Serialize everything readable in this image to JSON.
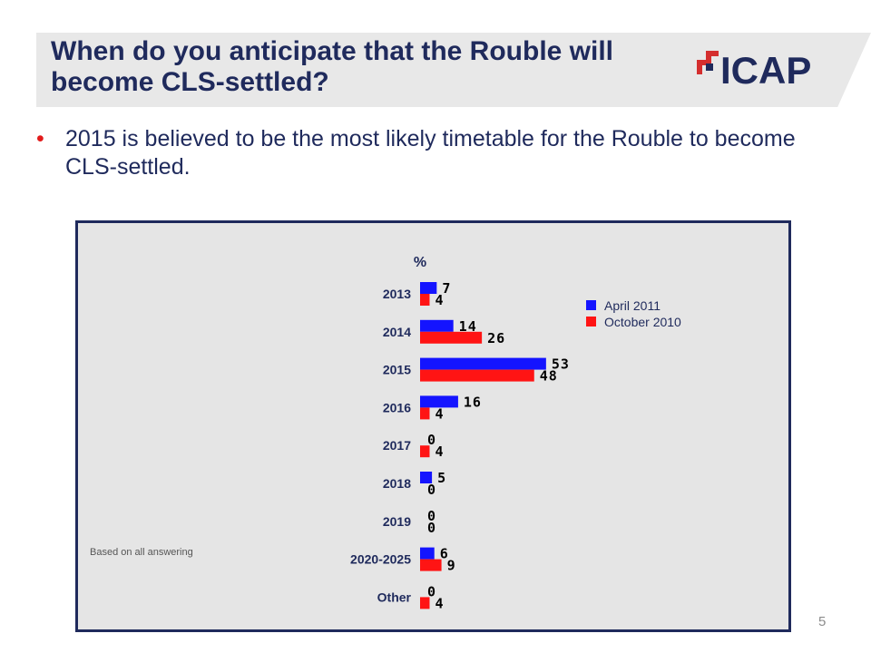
{
  "slide": {
    "title": "When do you anticipate that the Rouble will become CLS-settled?",
    "bullet": "2015 is believed to be the most likely timetable for the Rouble to become CLS-settled.",
    "logo_text": "ICAP",
    "footnote": "Based on all answering",
    "page_number": "5"
  },
  "colors": {
    "title": "#1f2a5c",
    "bullet_dot": "#e21b1b",
    "panel_bg": "#e5e5e5",
    "april_2011": "#1414ff",
    "october_2010": "#ff1414",
    "logo_red": "#d42e2e"
  },
  "chart_data": {
    "type": "bar",
    "orientation": "horizontal",
    "ylabel": "%",
    "categories": [
      "2013",
      "2014",
      "2015",
      "2016",
      "2017",
      "2018",
      "2019",
      "2020-2025",
      "Other"
    ],
    "series": [
      {
        "name": "April 2011",
        "values": [
          7,
          14,
          53,
          16,
          0,
          5,
          0,
          6,
          0
        ]
      },
      {
        "name": "October 2010",
        "values": [
          4,
          26,
          48,
          4,
          4,
          0,
          0,
          9,
          4
        ]
      }
    ],
    "legend_position": "top-right",
    "data_labels": true,
    "grid": false
  }
}
